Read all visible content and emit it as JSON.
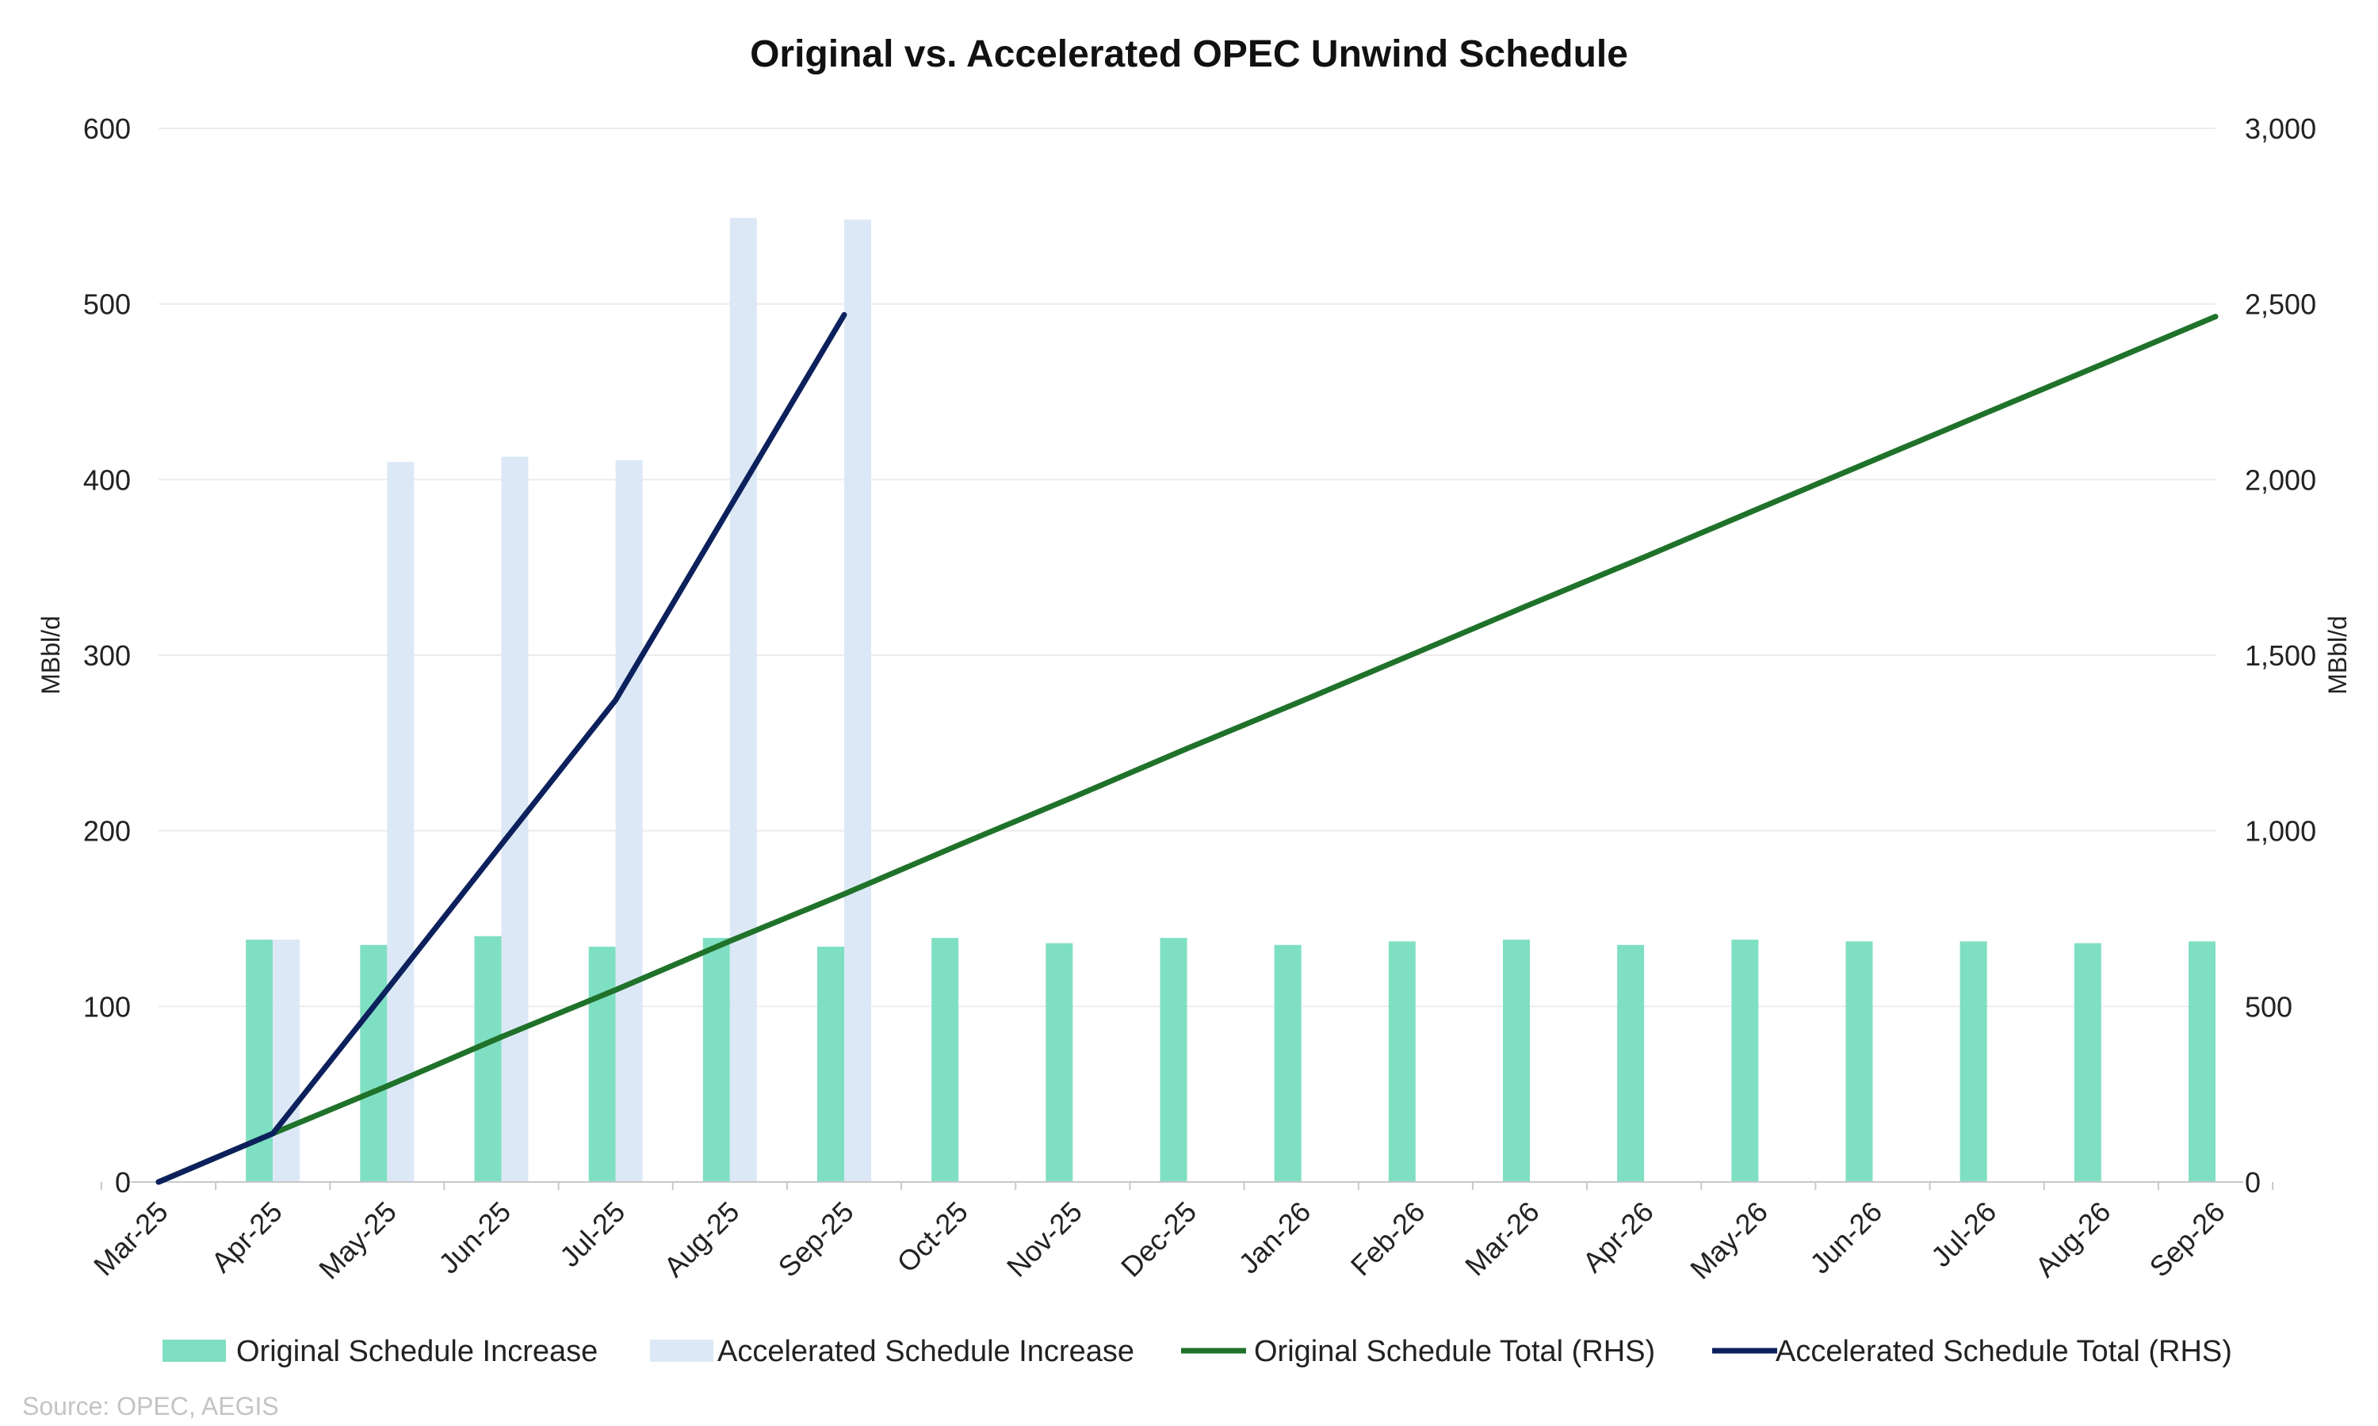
{
  "chart_data": {
    "type": "bar",
    "title": "Original vs. Accelerated OPEC Unwind Schedule",
    "ylabel": "MBbl/d",
    "y2label": "MBbl/d",
    "ylim": [
      0,
      600
    ],
    "y2lim": [
      0,
      3000
    ],
    "yticks": [
      "0",
      "100",
      "200",
      "300",
      "400",
      "500",
      "600"
    ],
    "y2ticks": [
      "0",
      "500",
      "1,000",
      "1,500",
      "2,000",
      "2,500",
      "3,000"
    ],
    "grid": true,
    "legend_position": "bottom",
    "source": "Source: OPEC, AEGIS",
    "categories": [
      "Mar-25",
      "Apr-25",
      "May-25",
      "Jun-25",
      "Jul-25",
      "Aug-25",
      "Sep-25",
      "Oct-25",
      "Nov-25",
      "Dec-25",
      "Jan-26",
      "Feb-26",
      "Mar-26",
      "Apr-26",
      "May-26",
      "Jun-26",
      "Jul-26",
      "Aug-26",
      "Sep-26"
    ],
    "series": [
      {
        "name": "Original Schedule Increase",
        "type": "bar",
        "axis": "left",
        "color": "#7fdfc2",
        "values": [
          null,
          138,
          135,
          140,
          134,
          139,
          134,
          139,
          136,
          139,
          135,
          137,
          138,
          135,
          138,
          137,
          137,
          136,
          137
        ]
      },
      {
        "name": "Accelerated Schedule Increase",
        "type": "bar",
        "axis": "left",
        "color": "#dce8f6",
        "values": [
          null,
          138,
          410,
          413,
          411,
          549,
          548,
          null,
          null,
          null,
          null,
          null,
          null,
          null,
          null,
          null,
          null,
          null,
          null
        ]
      },
      {
        "name": "Original Schedule Total (RHS)",
        "type": "line",
        "axis": "right",
        "color": "#1f7229",
        "values": [
          0,
          138,
          273,
          413,
          547,
          686,
          820,
          959,
          1095,
          1234,
          1369,
          1506,
          1644,
          1779,
          1917,
          2054,
          2191,
          2327,
          2464
        ]
      },
      {
        "name": "Accelerated Schedule Total (RHS)",
        "type": "line",
        "axis": "right",
        "color": "#0c215c",
        "values": [
          0,
          138,
          548,
          961,
          1372,
          1921,
          2469,
          null,
          null,
          null,
          null,
          null,
          null,
          null,
          null,
          null,
          null,
          null,
          null
        ]
      }
    ]
  }
}
